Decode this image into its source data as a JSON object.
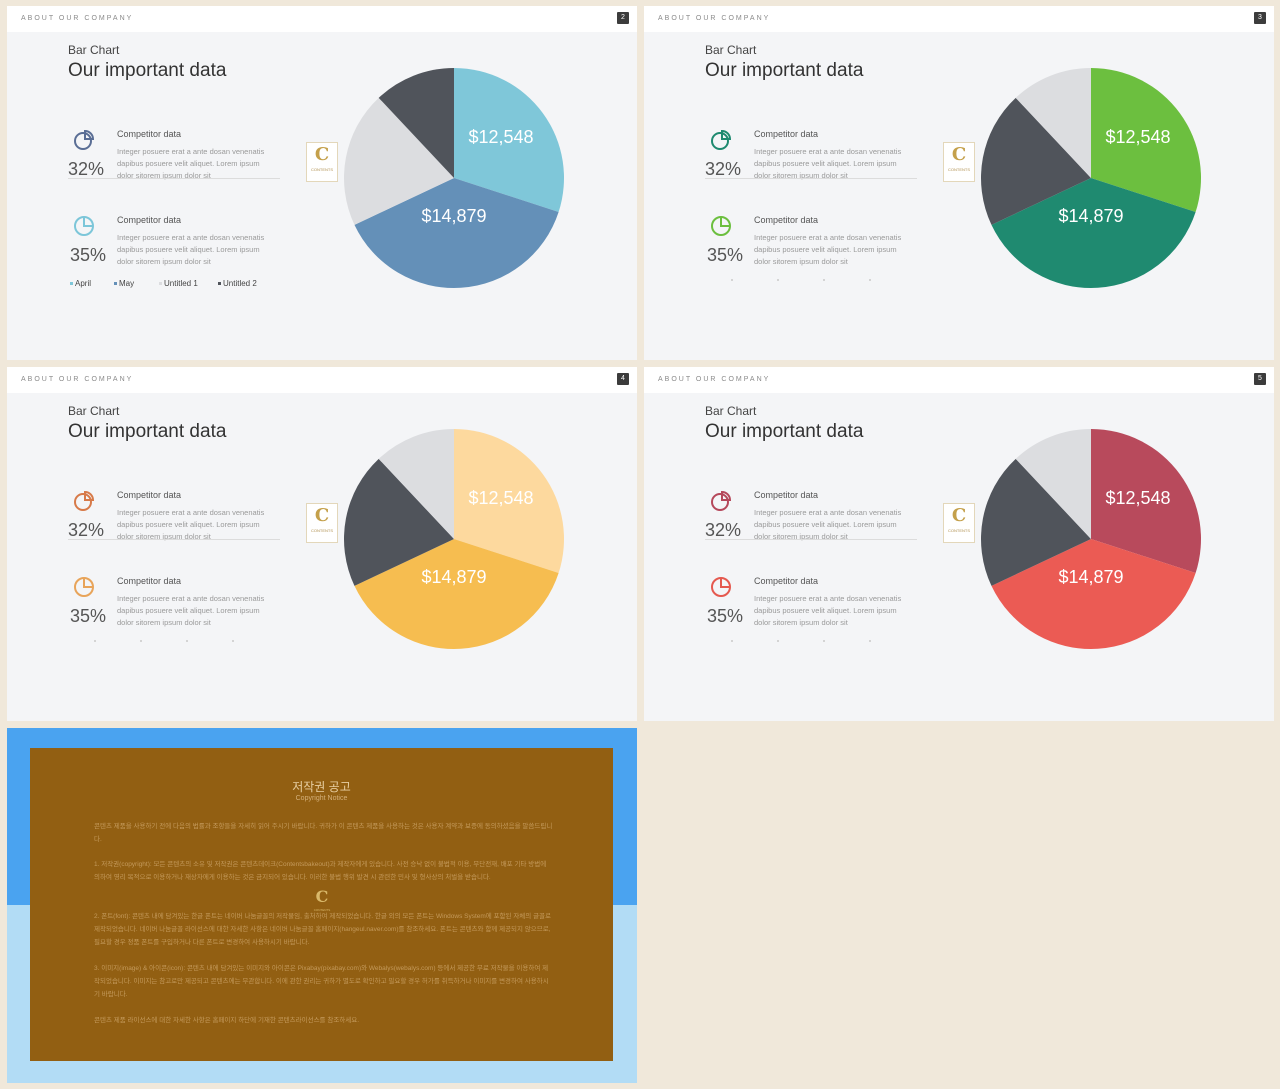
{
  "slides": [
    {
      "header": "ABOUT OUR COMPANY",
      "page": "2",
      "kind": "Bar Chart",
      "heading": "Our important data",
      "logo": {
        "letter": "C",
        "text": "CONTENTS"
      },
      "comp1": {
        "label": "Competitor data",
        "pct": "32%",
        "desc": "Integer posuere erat a ante dosan venenatis dapibus posuere velit aliquet. Lorem ipsum dolor sitorem ipsum dolor sit"
      },
      "comp2": {
        "label": "Competitor data",
        "pct": "35%",
        "desc": "Integer posuere erat a ante dosan venenatis dapibus posuere velit aliquet. Lorem ipsum dolor sitorem ipsum dolor sit"
      },
      "legend": [
        "April",
        "May",
        "Untitled 1",
        "Untitled 2"
      ],
      "icon_color": "#5a6e95",
      "icon2_color": "#7cc6d9",
      "pie_labels": [
        "$12,548",
        "$14,879"
      ],
      "pie_colors": [
        "#7fc7d9",
        "#6490b8",
        "#dcdde0",
        "#50545b"
      ]
    },
    {
      "header": "ABOUT OUR COMPANY",
      "page": "3",
      "kind": "Bar Chart",
      "heading": "Our important data",
      "logo": {
        "letter": "C",
        "text": "CONTENTS"
      },
      "comp1": {
        "label": "Competitor data",
        "pct": "32%",
        "desc": "Integer posuere erat a ante dosan venenatis dapibus posuere velit aliquet. Lorem ipsum dolor sitorem ipsum dolor sit"
      },
      "comp2": {
        "label": "Competitor data",
        "pct": "35%",
        "desc": "Integer posuere erat a ante dosan venenatis dapibus posuere velit aliquet. Lorem ipsum dolor sitorem ipsum dolor sit"
      },
      "legend": [],
      "icon_color": "#1f8a70",
      "icon2_color": "#6cbf3f",
      "pie_labels": [
        "$12,548",
        "$14,879"
      ],
      "pie_colors": [
        "#6cbf3f",
        "#1f8a70",
        "#50545b",
        "#dcdde0"
      ]
    },
    {
      "header": "ABOUT OUR COMPANY",
      "page": "4",
      "kind": "Bar Chart",
      "heading": "Our important data",
      "logo": {
        "letter": "C",
        "text": "CONTENTS"
      },
      "comp1": {
        "label": "Competitor data",
        "pct": "32%",
        "desc": "Integer posuere erat a ante dosan venenatis dapibus posuere velit aliquet. Lorem ipsum dolor sitorem ipsum dolor sit"
      },
      "comp2": {
        "label": "Competitor data",
        "pct": "35%",
        "desc": "Integer posuere erat a ante dosan venenatis dapibus posuere velit aliquet. Lorem ipsum dolor sitorem ipsum dolor sit"
      },
      "legend": [],
      "icon_color": "#d77a49",
      "icon2_color": "#e8a45a",
      "pie_labels": [
        "$12,548",
        "$14,879"
      ],
      "pie_colors": [
        "#fdd99e",
        "#f6bd50",
        "#50545b",
        "#dcdde0"
      ]
    },
    {
      "header": "ABOUT OUR COMPANY",
      "page": "5",
      "kind": "Bar Chart",
      "heading": "Our important data",
      "logo": {
        "letter": "C",
        "text": "CONTENTS"
      },
      "comp1": {
        "label": "Competitor data",
        "pct": "32%",
        "desc": "Integer posuere erat a ante dosan venenatis dapibus posuere velit aliquet. Lorem ipsum dolor sitorem ipsum dolor sit"
      },
      "comp2": {
        "label": "Competitor data",
        "pct": "35%",
        "desc": "Integer posuere erat a ante dosan venenatis dapibus posuere velit aliquet. Lorem ipsum dolor sitorem ipsum dolor sit"
      },
      "legend": [],
      "icon_color": "#b5485b",
      "icon2_color": "#e5594f",
      "pie_labels": [
        "$12,548",
        "$14,879"
      ],
      "pie_colors": [
        "#b84a5c",
        "#eb5b54",
        "#50545b",
        "#dcdde0"
      ]
    }
  ],
  "legend_swatches": [
    "#7fc7d9",
    "#6490b8",
    "#dcdde0",
    "#50545b"
  ],
  "notice": {
    "title": "저작권 공고",
    "subtitle": "Copyright Notice",
    "logo_letter": "C",
    "logo_text": "CONTENTS",
    "paragraphs": [
      "콘텐츠 제품을 사용하기 전에 다음의 법률과 조항들을 자세히 읽어 주시기 바랍니다. 귀하가 이 콘텐츠 제품을 사용하는 것은 사용자 계약과 보증에 동의하셨음을 말씀드립니다.",
      "1. 저작권(copyright): 모든 콘텐츠의 소유 및 저작권은 콘텐츠데이크(Contentsbakeout)과 제작자에게 있습니다. 사전 승낙 없이 불법적 이용, 무단전재, 배포 기타 방법에 의하여 영리 목적으로 이용하거나 재상자에게 이용하는 것은 금지되어 있습니다. 이러한 불법 행위 발견 시 관련한 민사 및 형사상의 처벌을 받습니다.",
      "2. 폰트(font): 콘텐츠 내에 담겨있는 한글 폰트는 네이버 나눔글꼴의 저작물임, 출처하여 제작되었습니다. 한글 외의 모든 폰트는 Windows System에 포함된 자체의 글꼴로 제작되었습니다. 네이버 나눔글꼴 라이선스에 대한 자세한 사항은 네이버 나눔글꼴 홈페이지(hangeul.naver.com)를 참조하세요. 폰트는 콘텐츠와 함께 제공되지 않으므로, 필요할 경우 정품 폰트를 구입하거나 다른 폰트로 변경하여 사용하시기 바랍니다.",
      "3. 이미지(image) & 아이콘(icon): 콘텐츠 내에 담겨있는 이미지와 아이콘은 Pixabay(pixabay.com)와 Webalys(webalys.com) 등에서 제공한 무료 저작물을 이용하여 제작되었습니다. 이미지는 참고로만 제공되고 콘텐츠에는 무관합니다. 이에 관한 권리는 귀하가 별도로 확인하고 필요할 경우 허가를 취득하거나 이미지를 변경하여 사용하시기 바랍니다.",
      "콘텐츠 제품 라이선스에 대한 자세한 사항은 홈페이지 하단에 기재한 콘텐츠라이선스를 참조하세요."
    ]
  }
}
